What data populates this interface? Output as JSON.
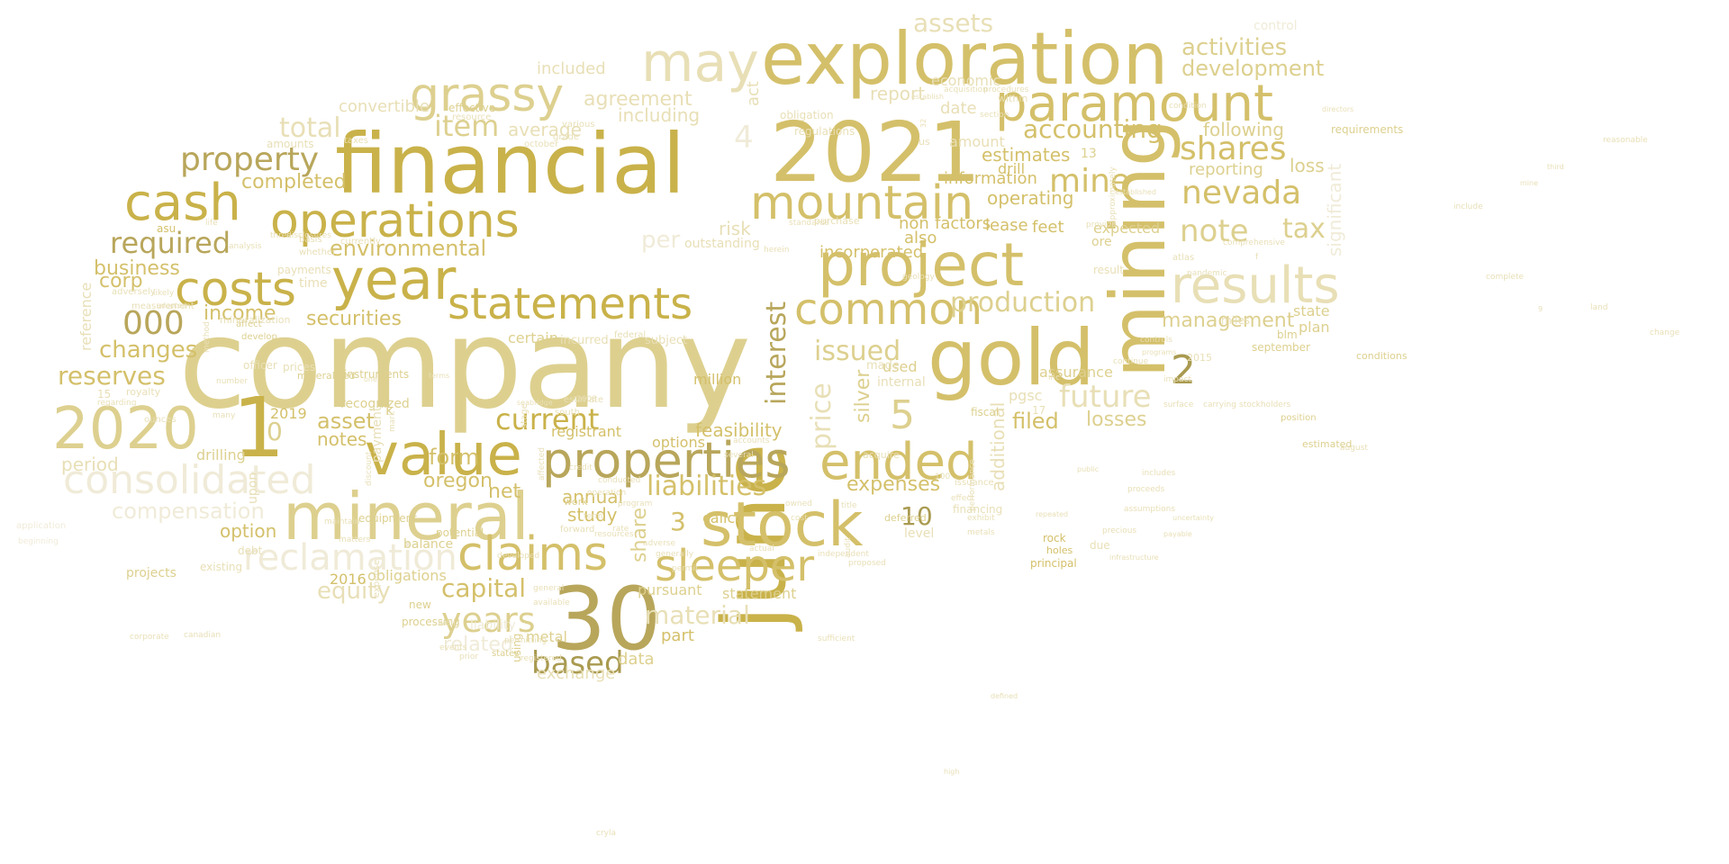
{
  "words": [
    {
      "text": "company"
    },
    {
      "text": "financial"
    },
    {
      "text": "exploration"
    },
    {
      "text": "2021"
    },
    {
      "text": "mineral"
    },
    {
      "text": "june"
    },
    {
      "text": "gold"
    },
    {
      "text": "mining"
    },
    {
      "text": "stock"
    },
    {
      "text": "project"
    },
    {
      "text": "paramount"
    },
    {
      "text": "properties"
    },
    {
      "text": "operations"
    },
    {
      "text": "statements"
    },
    {
      "text": "2020"
    },
    {
      "text": "1"
    },
    {
      "text": "value"
    },
    {
      "text": "30"
    },
    {
      "text": "year"
    },
    {
      "text": "costs"
    },
    {
      "text": "cash"
    },
    {
      "text": "may"
    },
    {
      "text": "grassy"
    },
    {
      "text": "mountain"
    },
    {
      "text": "claims"
    },
    {
      "text": "sleeper"
    },
    {
      "text": "ended"
    },
    {
      "text": "common"
    },
    {
      "text": "results"
    },
    {
      "text": "consolidated"
    },
    {
      "text": "reclamation"
    },
    {
      "text": "nevada"
    },
    {
      "text": "note"
    },
    {
      "text": "tax"
    },
    {
      "text": "shares"
    },
    {
      "text": "property"
    },
    {
      "text": "required"
    },
    {
      "text": "000"
    },
    {
      "text": "years"
    },
    {
      "text": "based"
    },
    {
      "text": "current"
    },
    {
      "text": "production"
    },
    {
      "text": "accounting"
    },
    {
      "text": "issued"
    },
    {
      "text": "interest"
    },
    {
      "text": "price"
    },
    {
      "text": "future"
    },
    {
      "text": "liabilities"
    },
    {
      "text": "capital"
    },
    {
      "text": "material"
    },
    {
      "text": "reserves"
    },
    {
      "text": "changes"
    },
    {
      "text": "item"
    },
    {
      "text": "mine"
    },
    {
      "text": "activities"
    },
    {
      "text": "development"
    },
    {
      "text": "5"
    },
    {
      "text": "2"
    },
    {
      "text": "10"
    },
    {
      "text": "4"
    },
    {
      "text": "3"
    },
    {
      "text": "0"
    },
    {
      "text": "assets"
    },
    {
      "text": "total"
    },
    {
      "text": "equity"
    },
    {
      "text": "compensation"
    },
    {
      "text": "environmental"
    },
    {
      "text": "securities"
    },
    {
      "text": "business"
    },
    {
      "text": "corp"
    },
    {
      "text": "income"
    },
    {
      "text": "asset"
    },
    {
      "text": "notes"
    },
    {
      "text": "form"
    },
    {
      "text": "net"
    },
    {
      "text": "oregon"
    },
    {
      "text": "filed"
    },
    {
      "text": "losses"
    },
    {
      "text": "expenses"
    },
    {
      "text": "management"
    },
    {
      "text": "completed"
    },
    {
      "text": "period"
    },
    {
      "text": "option"
    },
    {
      "text": "annual"
    },
    {
      "text": "study"
    },
    {
      "text": "share"
    },
    {
      "text": "additional"
    },
    {
      "text": "silver"
    },
    {
      "text": "feasibility"
    },
    {
      "text": "loss"
    },
    {
      "text": "following"
    },
    {
      "text": "reporting"
    },
    {
      "text": "significant"
    },
    {
      "text": "agreement"
    },
    {
      "text": "including"
    },
    {
      "text": "average"
    },
    {
      "text": "estimates"
    },
    {
      "text": "drill"
    },
    {
      "text": "information"
    },
    {
      "text": "operating"
    },
    {
      "text": "convertible"
    },
    {
      "text": "report"
    },
    {
      "text": "act"
    },
    {
      "text": "date"
    },
    {
      "text": "included"
    },
    {
      "text": "2019"
    },
    {
      "text": "2016"
    },
    {
      "text": "exchange"
    },
    {
      "text": "related"
    },
    {
      "text": "data"
    },
    {
      "text": "part"
    },
    {
      "text": "state"
    },
    {
      "text": "plan"
    },
    {
      "text": "expected"
    },
    {
      "text": "feet"
    },
    {
      "text": "lease"
    },
    {
      "text": "non"
    },
    {
      "text": "factors"
    },
    {
      "text": "also"
    },
    {
      "text": "incorporated"
    },
    {
      "text": "risk"
    },
    {
      "text": "per"
    },
    {
      "text": "used"
    },
    {
      "text": "assurance"
    },
    {
      "text": "pgsc"
    },
    {
      "text": "registrant"
    },
    {
      "text": "options"
    },
    {
      "text": "calico"
    },
    {
      "text": "million"
    },
    {
      "text": "statement"
    },
    {
      "text": "pursuant"
    },
    {
      "text": "obligations"
    },
    {
      "text": "economic"
    },
    {
      "text": "amount"
    },
    {
      "text": "reference"
    },
    {
      "text": "mineralization"
    },
    {
      "text": "time"
    },
    {
      "text": "payments"
    },
    {
      "text": "recognized"
    },
    {
      "text": "drilling"
    },
    {
      "text": "projects"
    },
    {
      "text": "certain"
    },
    {
      "text": "incurred"
    },
    {
      "text": "subject"
    },
    {
      "text": "outstanding"
    },
    {
      "text": "internal"
    },
    {
      "text": "made"
    },
    {
      "text": "fiscal"
    },
    {
      "text": "ore"
    },
    {
      "text": "13"
    },
    {
      "text": "17"
    },
    {
      "text": "ounces"
    },
    {
      "text": "prices"
    },
    {
      "text": "officer"
    },
    {
      "text": "royalty"
    },
    {
      "text": "15"
    },
    {
      "text": "upon"
    },
    {
      "text": "payment"
    },
    {
      "text": "existing"
    },
    {
      "text": "debt"
    },
    {
      "text": "balance"
    },
    {
      "text": "equipment"
    },
    {
      "text": "new"
    },
    {
      "text": "processing"
    },
    {
      "text": "using"
    },
    {
      "text": "states"
    },
    {
      "text": "level"
    },
    {
      "text": "deferred"
    },
    {
      "text": "financing"
    },
    {
      "text": "rock"
    },
    {
      "text": "holes"
    },
    {
      "text": "principal"
    },
    {
      "text": "due"
    },
    {
      "text": "2015"
    },
    {
      "text": "conditions"
    },
    {
      "text": "requirements"
    },
    {
      "text": "estimated"
    },
    {
      "text": "position"
    },
    {
      "text": "blm"
    },
    {
      "text": "september"
    },
    {
      "text": "result"
    },
    {
      "text": "miles"
    },
    {
      "text": "effective"
    },
    {
      "text": "resource"
    },
    {
      "text": "taxes"
    },
    {
      "text": "us"
    },
    {
      "text": "regulations"
    },
    {
      "text": "obligation"
    },
    {
      "text": "purchase"
    },
    {
      "text": "within"
    },
    {
      "text": "directors"
    },
    {
      "text": "control"
    },
    {
      "text": "amounts"
    },
    {
      "text": "analysis"
    },
    {
      "text": "disclosures"
    },
    {
      "text": "currently"
    },
    {
      "text": "basis"
    },
    {
      "text": "whether"
    },
    {
      "text": "affect"
    },
    {
      "text": "develop"
    },
    {
      "text": "adversely"
    },
    {
      "text": "measurement"
    },
    {
      "text": "asu"
    },
    {
      "text": "life"
    },
    {
      "text": "three"
    },
    {
      "text": "mineralized"
    },
    {
      "text": "instruments"
    },
    {
      "text": "one"
    },
    {
      "text": "terms"
    },
    {
      "text": "south"
    },
    {
      "text": "estimate"
    },
    {
      "text": "seabridge"
    },
    {
      "text": "federal"
    },
    {
      "text": "stage"
    },
    {
      "text": "surface"
    },
    {
      "text": "carrying"
    },
    {
      "text": "stockholders"
    },
    {
      "text": "continue"
    },
    {
      "text": "controls"
    },
    {
      "text": "programs"
    },
    {
      "text": "impact"
    },
    {
      "text": "atlas"
    },
    {
      "text": "pandemic"
    },
    {
      "text": "comprehensive"
    },
    {
      "text": "f"
    },
    {
      "text": "k"
    },
    {
      "text": "metal"
    },
    {
      "text": "work"
    },
    {
      "text": "acquire"
    },
    {
      "text": "exhibit"
    },
    {
      "text": "potential"
    },
    {
      "text": "metals"
    },
    {
      "text": "forward"
    },
    {
      "text": "audit"
    },
    {
      "text": "sufficient"
    },
    {
      "text": "well"
    },
    {
      "text": "expense"
    },
    {
      "text": "october"
    },
    {
      "text": "grade"
    },
    {
      "text": "various"
    },
    {
      "text": "acquisition"
    },
    {
      "text": "section"
    },
    {
      "text": "establish"
    },
    {
      "text": "issuance"
    },
    {
      "text": "effect"
    },
    {
      "text": "performance"
    },
    {
      "text": "herein"
    },
    {
      "text": "accounts"
    },
    {
      "text": "several"
    },
    {
      "text": "owned"
    },
    {
      "text": "cost"
    },
    {
      "text": "title"
    },
    {
      "text": "precious"
    },
    {
      "text": "assumptions"
    },
    {
      "text": "proceeds"
    },
    {
      "text": "includes"
    },
    {
      "text": "proposed"
    },
    {
      "text": "independent"
    },
    {
      "text": "actual"
    },
    {
      "text": "permit"
    },
    {
      "text": "generally"
    },
    {
      "text": "adverse"
    },
    {
      "text": "rate"
    },
    {
      "text": "term"
    },
    {
      "text": "resources"
    },
    {
      "text": "program"
    },
    {
      "text": "operation"
    },
    {
      "text": "conducted"
    },
    {
      "text": "credit"
    },
    {
      "text": "liability"
    },
    {
      "text": "developed"
    },
    {
      "text": "mark"
    },
    {
      "text": "affected"
    },
    {
      "text": "prior"
    },
    {
      "text": "permitting"
    },
    {
      "text": "maintain"
    },
    {
      "text": "matters"
    },
    {
      "text": "discount"
    },
    {
      "text": "number"
    },
    {
      "text": "many"
    },
    {
      "text": "method"
    },
    {
      "text": "regarding"
    },
    {
      "text": "corporate"
    },
    {
      "text": "canadian"
    },
    {
      "text": "registered"
    },
    {
      "text": "general"
    },
    {
      "text": "available"
    },
    {
      "text": "events"
    },
    {
      "text": "beginning"
    },
    {
      "text": "application"
    },
    {
      "text": "likely"
    },
    {
      "text": "adopted"
    },
    {
      "text": "approximately"
    },
    {
      "text": "provide"
    },
    {
      "text": "established"
    },
    {
      "text": "procedures"
    },
    {
      "text": "condition"
    },
    {
      "text": "standards"
    },
    {
      "text": "geology"
    },
    {
      "text": "inc"
    },
    {
      "text": "change"
    },
    {
      "text": "land"
    },
    {
      "text": "reasonable"
    },
    {
      "text": "complete"
    },
    {
      "text": "include"
    },
    {
      "text": "third"
    },
    {
      "text": "mine"
    },
    {
      "text": "9"
    },
    {
      "text": "32"
    },
    {
      "text": "2008"
    },
    {
      "text": "100"
    },
    {
      "text": "cryla"
    },
    {
      "text": "august"
    },
    {
      "text": "defined"
    },
    {
      "text": "high"
    },
    {
      "text": "infrastructure"
    },
    {
      "text": "public"
    },
    {
      "text": "payable"
    },
    {
      "text": "repeated"
    },
    {
      "text": "uncertainty"
    }
  ]
}
